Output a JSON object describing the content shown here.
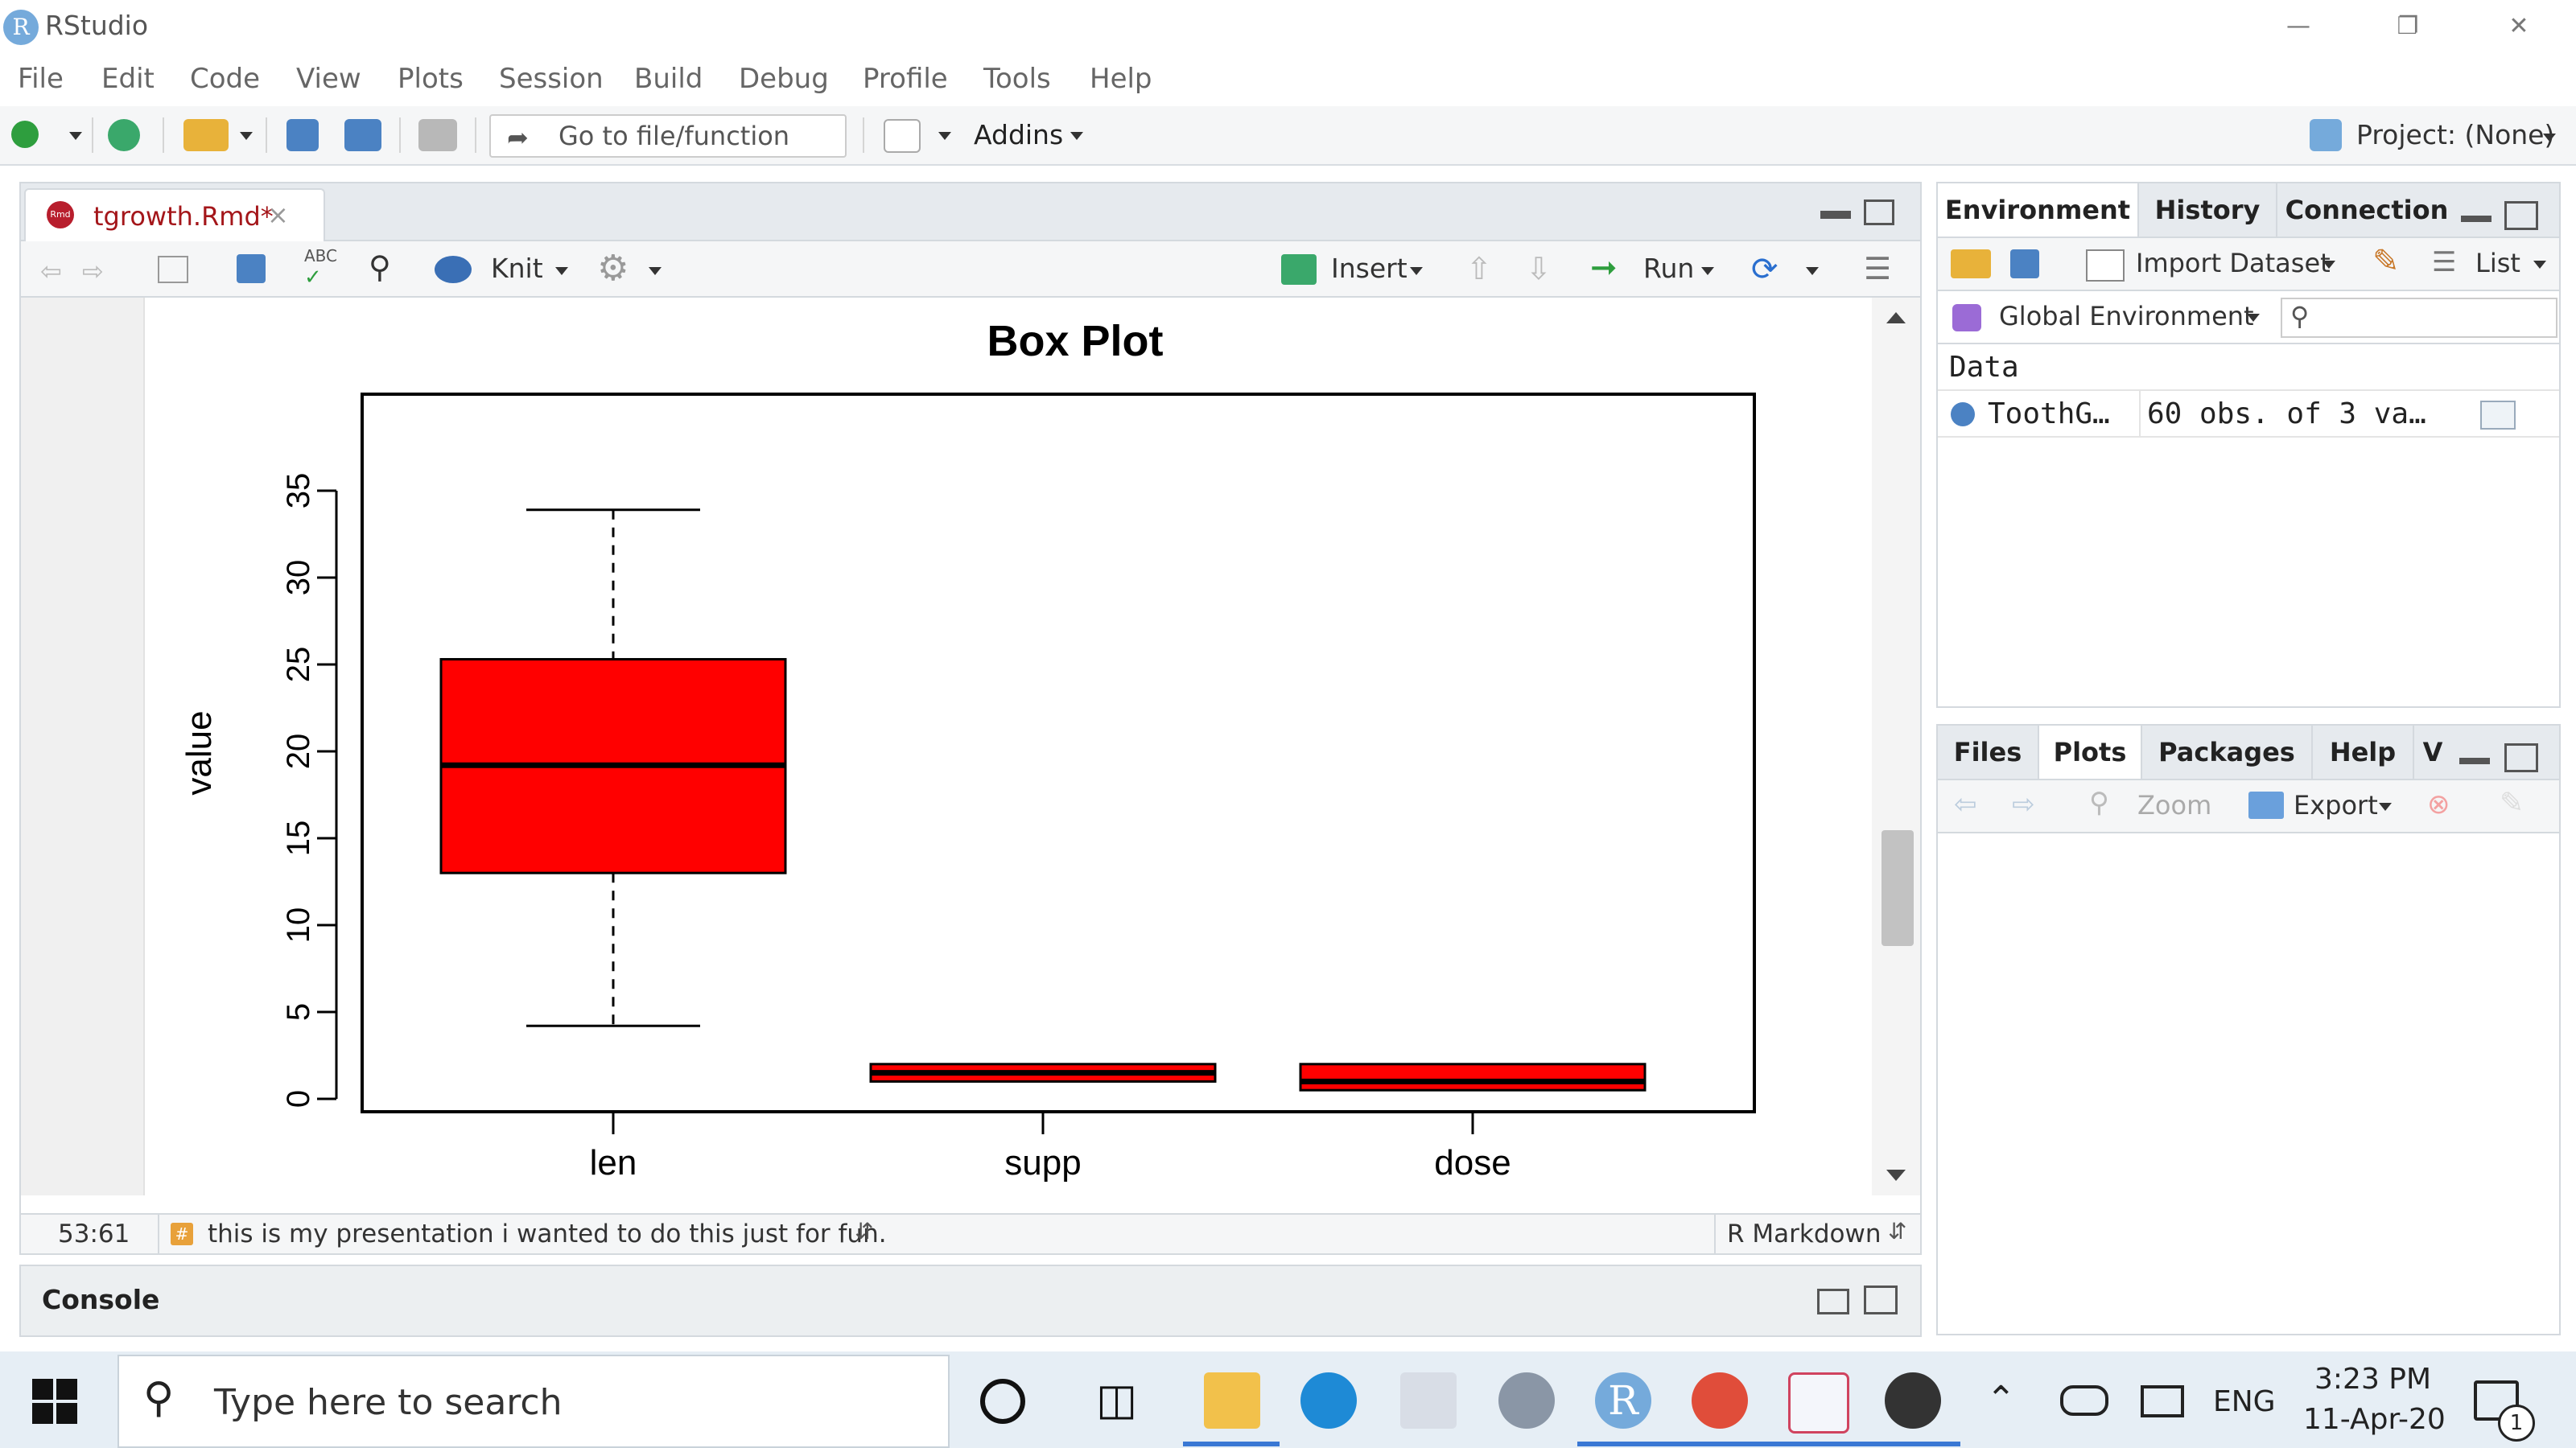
{
  "window": {
    "app_title": "RStudio",
    "logo_letter": "R"
  },
  "menu": {
    "items": [
      "File",
      "Edit",
      "Code",
      "View",
      "Plots",
      "Session",
      "Build",
      "Debug",
      "Profile",
      "Tools",
      "Help"
    ]
  },
  "toolbar": {
    "goto_placeholder": "Go to file/function",
    "addins_label": "Addins",
    "project_label": "Project: (None)"
  },
  "editor": {
    "tab_name": "tgrowth.Rmd*",
    "tab_icon_text": "Rmd",
    "knit_label": "Knit",
    "insert_label": "Insert",
    "run_label": "Run",
    "status": {
      "position": "53:61",
      "chunk_label": "this is my presentation i wanted to do this just for fun.",
      "mode": "R Markdown"
    }
  },
  "console": {
    "title": "Console"
  },
  "environment": {
    "tabs": [
      "Environment",
      "History",
      "Connection"
    ],
    "import_label": "Import Dataset",
    "list_label": "List",
    "scope_label": "Global Environment",
    "section": "Data",
    "rows": [
      {
        "name": "ToothG…",
        "value": "60 obs. of 3 va…"
      }
    ]
  },
  "files": {
    "tabs": [
      "Files",
      "Plots",
      "Packages",
      "Help",
      "V"
    ],
    "zoom_label": "Zoom",
    "export_label": "Export"
  },
  "taskbar": {
    "search_placeholder": "Type here to search",
    "lang": "ENG",
    "time": "3:23 PM",
    "date": "11-Apr-20",
    "notif_count": "1"
  },
  "colors": {
    "box_fill": "#ff0000",
    "accent": "#75aadb"
  },
  "chart_data": {
    "type": "boxplot",
    "title": "Box Plot",
    "ylabel": "value",
    "xlabel": "",
    "ylim": [
      0,
      35
    ],
    "yticks": [
      0,
      5,
      10,
      15,
      20,
      25,
      30,
      35
    ],
    "categories": [
      "len",
      "supp",
      "dose"
    ],
    "boxes": [
      {
        "name": "len",
        "min": 4.2,
        "q1": 13.0,
        "median": 19.2,
        "q3": 25.3,
        "max": 33.9
      },
      {
        "name": "supp",
        "min": 1,
        "q1": 1,
        "median": 1.5,
        "q3": 2,
        "max": 2
      },
      {
        "name": "dose",
        "min": 0.5,
        "q1": 0.5,
        "median": 1,
        "q3": 2,
        "max": 2
      }
    ]
  }
}
